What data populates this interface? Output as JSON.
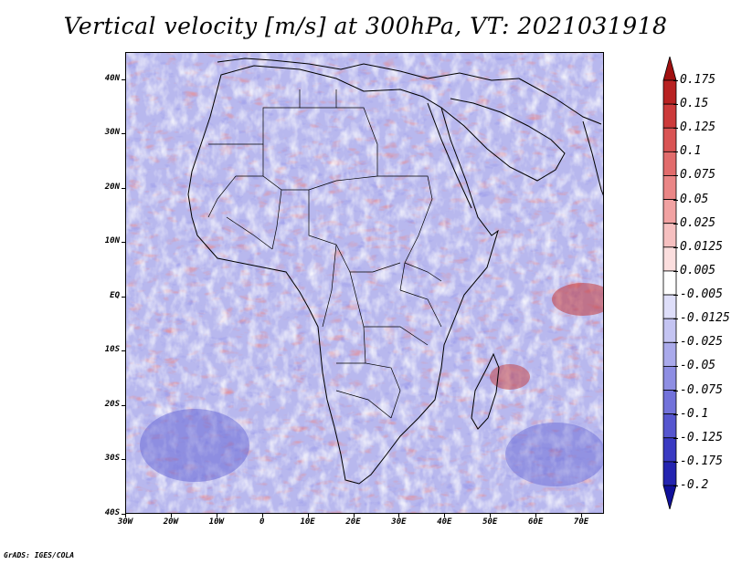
{
  "title": "Vertical velocity [m/s] at 300hPa, VT: 2021031918",
  "footer": "GrADS: IGES/COLA",
  "map": {
    "projection": "latlon",
    "lon_range": [
      -30,
      75
    ],
    "lat_range": [
      -40,
      45
    ],
    "lat_labels": [
      "40N",
      "30N",
      "20N",
      "10N",
      "EQ",
      "10S",
      "20S",
      "30S",
      "40S"
    ],
    "lon_labels": [
      "30W",
      "20W",
      "10W",
      "0",
      "10E",
      "20E",
      "30E",
      "40E",
      "50E",
      "60E",
      "70E"
    ],
    "field": "vertical velocity",
    "units": "m/s",
    "level": "300hPa"
  },
  "colorbar": {
    "labels": [
      "0.175",
      "0.15",
      "0.125",
      "0.1",
      "0.075",
      "0.05",
      "0.025",
      "0.0125",
      "0.005",
      "-0.005",
      "-0.0125",
      "-0.025",
      "-0.05",
      "-0.075",
      "-0.1",
      "-0.125",
      "-0.175",
      "-0.2"
    ],
    "colors": [
      "#a01010",
      "#b82222",
      "#cc3a3a",
      "#d95454",
      "#e26c6c",
      "#ea8686",
      "#f1a2a2",
      "#f6c0c0",
      "#fbdede",
      "#ffffff",
      "#dedef9",
      "#c4c4f2",
      "#aaaaeb",
      "#8e8ee3",
      "#7272da",
      "#5656cf",
      "#3a3ac2",
      "#2424b0",
      "#10109a"
    ]
  }
}
